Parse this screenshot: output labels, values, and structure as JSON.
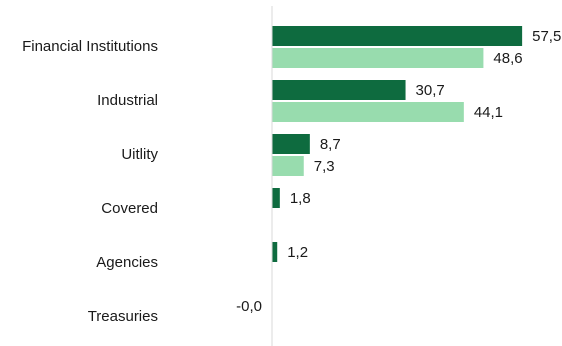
{
  "chart_data": {
    "type": "bar",
    "orientation": "horizontal",
    "categories": [
      "Financial Institutions",
      "Industrial",
      "Uitlity",
      "Covered",
      "Agencies",
      "Treasuries"
    ],
    "series": [
      {
        "values": [
          57.5,
          30.7,
          8.7,
          1.8,
          1.2,
          -0.0
        ],
        "labels": [
          "57,5",
          "30,7",
          "8,7",
          "1,8",
          "1,2",
          "-0,0"
        ],
        "color": "#0e6b3f"
      },
      {
        "values": [
          48.6,
          44.1,
          7.3,
          null,
          null,
          null
        ],
        "labels": [
          "48,6",
          "44,1",
          "7,3",
          "",
          "",
          ""
        ],
        "color": "#98dcae"
      }
    ],
    "xlim": [
      0,
      60
    ],
    "grid": false,
    "legend": "none",
    "title": "",
    "xlabel": "",
    "ylabel": ""
  }
}
